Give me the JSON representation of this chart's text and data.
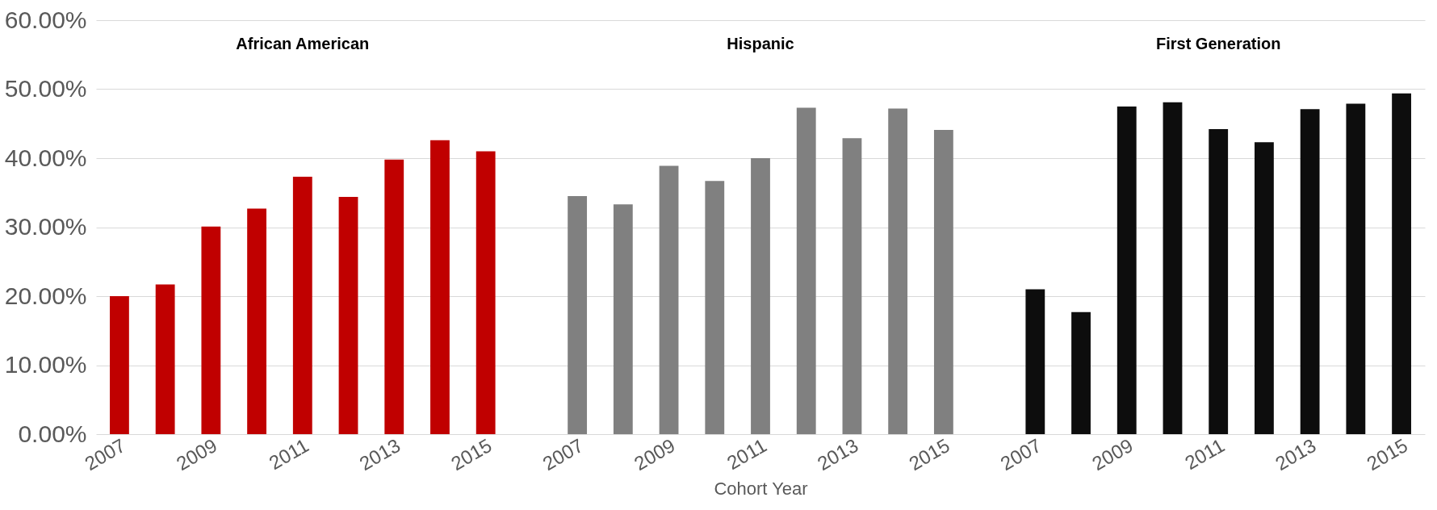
{
  "chart_data": {
    "type": "bar",
    "xlabel": "Cohort Year",
    "categories": [
      "2007",
      null,
      "2009",
      null,
      "2011",
      null,
      "2013",
      null,
      "2015",
      null,
      "2007",
      null,
      "2009",
      null,
      "2011",
      null,
      "2013",
      null,
      "2015",
      null,
      "2007",
      null,
      "2009",
      null,
      "2011",
      null,
      "2013",
      null,
      "2015"
    ],
    "series": [
      {
        "color": "#c00000",
        "values": [
          20.0,
          21.7,
          30.1,
          32.7,
          37.3,
          34.4,
          39.8,
          42.6,
          41.0,
          null,
          null,
          null,
          null,
          null,
          null,
          null,
          null,
          null,
          null,
          null,
          null,
          null,
          null,
          null,
          null,
          null,
          null,
          null,
          null
        ]
      },
      {
        "color": "#808080",
        "values": [
          null,
          null,
          null,
          null,
          null,
          null,
          null,
          null,
          null,
          null,
          34.5,
          33.3,
          38.9,
          36.7,
          40.0,
          47.3,
          42.9,
          47.2,
          44.1,
          null,
          null,
          null,
          null,
          null,
          null,
          null,
          null,
          null,
          null
        ]
      },
      {
        "color": "#0d0d0d",
        "values": [
          null,
          null,
          null,
          null,
          null,
          null,
          null,
          null,
          null,
          null,
          null,
          null,
          null,
          null,
          null,
          null,
          null,
          null,
          null,
          null,
          21.0,
          17.7,
          47.5,
          48.1,
          44.2,
          42.3,
          47.1,
          47.9,
          49.4
        ]
      }
    ],
    "ylim": [
      0,
      60
    ],
    "yticks": [
      {
        "value": 0,
        "label": "0.00%"
      },
      {
        "value": 10,
        "label": "10.00%"
      },
      {
        "value": 20,
        "label": "20.00%"
      },
      {
        "value": 30,
        "label": "30.00%"
      },
      {
        "value": 40,
        "label": "40.00%"
      },
      {
        "value": 50,
        "label": "50.00%"
      },
      {
        "value": 60,
        "label": "60.00%"
      }
    ],
    "grid": "y",
    "annotations": [
      "African American",
      "Hispanic",
      "First Generation"
    ]
  }
}
